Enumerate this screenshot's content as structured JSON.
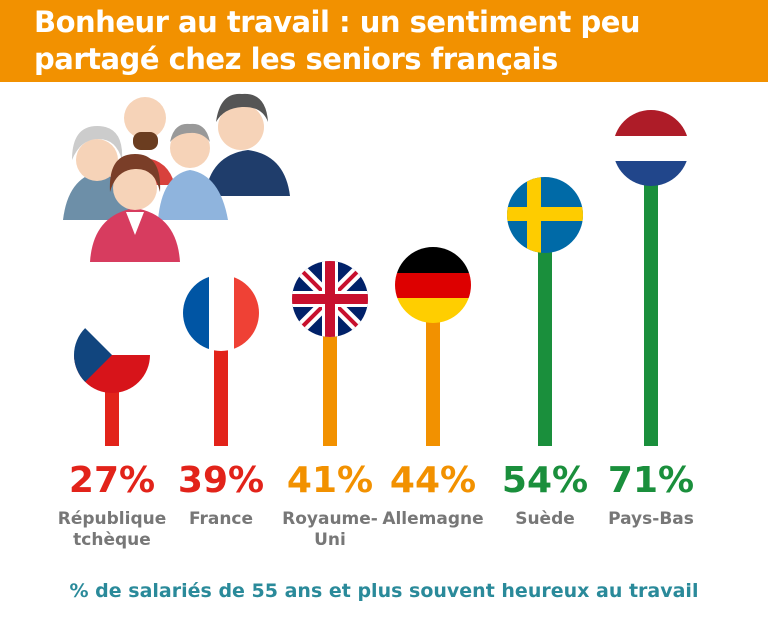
{
  "title": "Bonheur au travail : un sentiment peu partagé chez les seniors français",
  "footnote": "% de salariés de 55 ans et plus souvent heureux au travail",
  "chart_data": {
    "type": "bar",
    "categories": [
      {
        "label": [
          "République",
          "tchèque"
        ],
        "flag": "czech-flag"
      },
      {
        "label": [
          "France"
        ],
        "flag": "french-flag"
      },
      {
        "label": [
          "Royaume-",
          "Uni"
        ],
        "flag": "uk-flag"
      },
      {
        "label": [
          "Allemagne"
        ],
        "flag": "german-flag"
      },
      {
        "label": [
          "Suède"
        ],
        "flag": "swedish-flag"
      },
      {
        "label": [
          "Pays-Bas"
        ],
        "flag": "dutch-flag"
      }
    ],
    "values": [
      27,
      39,
      41,
      44,
      54,
      71
    ],
    "value_labels": [
      "27%",
      "39%",
      "41%",
      "44%",
      "54%",
      "71%"
    ],
    "colors": [
      "#e2231a",
      "#e2231a",
      "#f29100",
      "#f29100",
      "#1a8f3c",
      "#1a8f3c"
    ],
    "category_label_colors": [
      "#777777",
      "#e2231a",
      "#777777",
      "#777777",
      "#777777",
      "#777777"
    ]
  },
  "colors": {
    "header": "#f29100",
    "footnote": "#2a8a9a"
  }
}
